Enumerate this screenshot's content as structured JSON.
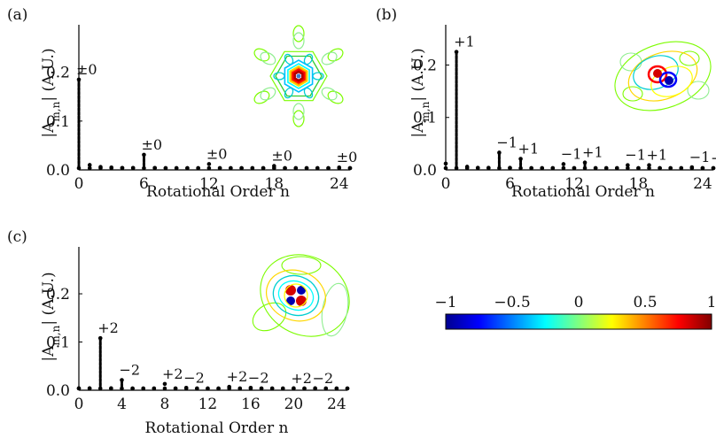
{
  "chart_data": [
    {
      "type": "scatter",
      "panel_label": "(a)",
      "xlabel": "Rotational Order n",
      "ylabel": "|A_{m,n}| (A.U.)",
      "xlim": [
        0,
        25
      ],
      "ylim": [
        0,
        0.29
      ],
      "xticks": [
        "0",
        "6",
        "12",
        "18",
        "24"
      ],
      "yticks": [
        "0.0",
        "0.1",
        "0.2"
      ],
      "x": [
        0,
        1,
        2,
        3,
        4,
        5,
        6,
        7,
        8,
        9,
        10,
        11,
        12,
        13,
        14,
        15,
        16,
        17,
        18,
        19,
        20,
        21,
        22,
        23,
        24,
        25
      ],
      "values": [
        0.185,
        0.01,
        0.006,
        0.005,
        0.004,
        0.004,
        0.031,
        0.004,
        0.003,
        0.003,
        0.003,
        0.003,
        0.012,
        0.003,
        0.003,
        0.003,
        0.003,
        0.003,
        0.008,
        0.003,
        0.003,
        0.003,
        0.003,
        0.003,
        0.005,
        0.003
      ],
      "annotations": [
        {
          "x": 0,
          "y": 0.185,
          "text": "±0"
        },
        {
          "x": 6,
          "y": 0.031,
          "text": "±0"
        },
        {
          "x": 12,
          "y": 0.012,
          "text": "±0"
        },
        {
          "x": 18,
          "y": 0.008,
          "text": "±0"
        },
        {
          "x": 24,
          "y": 0.005,
          "text": "±0"
        }
      ],
      "inset": "contour-hexagonal-centered"
    },
    {
      "type": "scatter",
      "panel_label": "(b)",
      "xlabel": "Rotational Order n",
      "ylabel": "|A_{m,n}| (A.U.)",
      "xlim": [
        0,
        25
      ],
      "ylim": [
        0,
        0.27
      ],
      "xticks": [
        "0",
        "6",
        "12",
        "18",
        "24"
      ],
      "yticks": [
        "0.0",
        "0.1",
        "0.2"
      ],
      "x": [
        0,
        1,
        2,
        3,
        4,
        5,
        6,
        7,
        8,
        9,
        10,
        11,
        12,
        13,
        14,
        15,
        16,
        17,
        18,
        19,
        20,
        21,
        22,
        23,
        24,
        25
      ],
      "values": [
        0.012,
        0.225,
        0.006,
        0.004,
        0.004,
        0.033,
        0.004,
        0.021,
        0.003,
        0.003,
        0.003,
        0.011,
        0.003,
        0.014,
        0.003,
        0.003,
        0.003,
        0.009,
        0.003,
        0.009,
        0.003,
        0.003,
        0.003,
        0.005,
        0.003,
        0.003
      ],
      "annotations": [
        {
          "x": 1,
          "y": 0.225,
          "text": "+1"
        },
        {
          "x": 5,
          "y": 0.033,
          "text": "−1"
        },
        {
          "x": 7,
          "y": 0.021,
          "text": "+1"
        },
        {
          "x": 11,
          "y": 0.011,
          "text": "−1"
        },
        {
          "x": 13,
          "y": 0.014,
          "text": "+1"
        },
        {
          "x": 17,
          "y": 0.009,
          "text": "−1"
        },
        {
          "x": 19,
          "y": 0.009,
          "text": "+1"
        },
        {
          "x": 23,
          "y": 0.005,
          "text": "−1"
        },
        {
          "x": 25,
          "y": 0.003,
          "text": "+"
        }
      ],
      "inset": "contour-dipole"
    },
    {
      "type": "scatter",
      "panel_label": "(c)",
      "xlabel": "Rotational Order n",
      "ylabel": "|A_{m,n}| (A.U.)",
      "xlim": [
        0,
        25
      ],
      "ylim": [
        0,
        0.29
      ],
      "xticks": [
        "0",
        "4",
        "8",
        "12",
        "16",
        "20",
        "24"
      ],
      "yticks": [
        "0.0",
        "0.1",
        "0.2"
      ],
      "x": [
        0,
        1,
        2,
        3,
        4,
        5,
        6,
        7,
        8,
        9,
        10,
        11,
        12,
        13,
        14,
        15,
        16,
        17,
        18,
        19,
        20,
        21,
        22,
        23,
        24,
        25
      ],
      "values": [
        0.004,
        0.004,
        0.108,
        0.004,
        0.021,
        0.003,
        0.003,
        0.003,
        0.013,
        0.003,
        0.005,
        0.003,
        0.003,
        0.003,
        0.007,
        0.003,
        0.005,
        0.003,
        0.003,
        0.003,
        0.004,
        0.003,
        0.004,
        0.003,
        0.003,
        0.003
      ],
      "annotations": [
        {
          "x": 2,
          "y": 0.108,
          "text": "+2"
        },
        {
          "x": 4,
          "y": 0.021,
          "text": "−2"
        },
        {
          "x": 8,
          "y": 0.013,
          "text": "+2"
        },
        {
          "x": 10,
          "y": 0.005,
          "text": "−2"
        },
        {
          "x": 14,
          "y": 0.007,
          "text": "+2"
        },
        {
          "x": 16,
          "y": 0.005,
          "text": "−2"
        },
        {
          "x": 20,
          "y": 0.004,
          "text": "+2"
        },
        {
          "x": 22,
          "y": 0.004,
          "text": "−2"
        }
      ],
      "inset": "contour-quadrupole"
    }
  ],
  "colorbar": {
    "ticks": [
      "−1",
      "−0.5",
      "0",
      "0.5",
      "1"
    ],
    "range": [
      -1,
      1
    ],
    "colors": [
      "#00008f",
      "#0000ff",
      "#00ffff",
      "#ffff00",
      "#ff0000",
      "#800000"
    ]
  }
}
